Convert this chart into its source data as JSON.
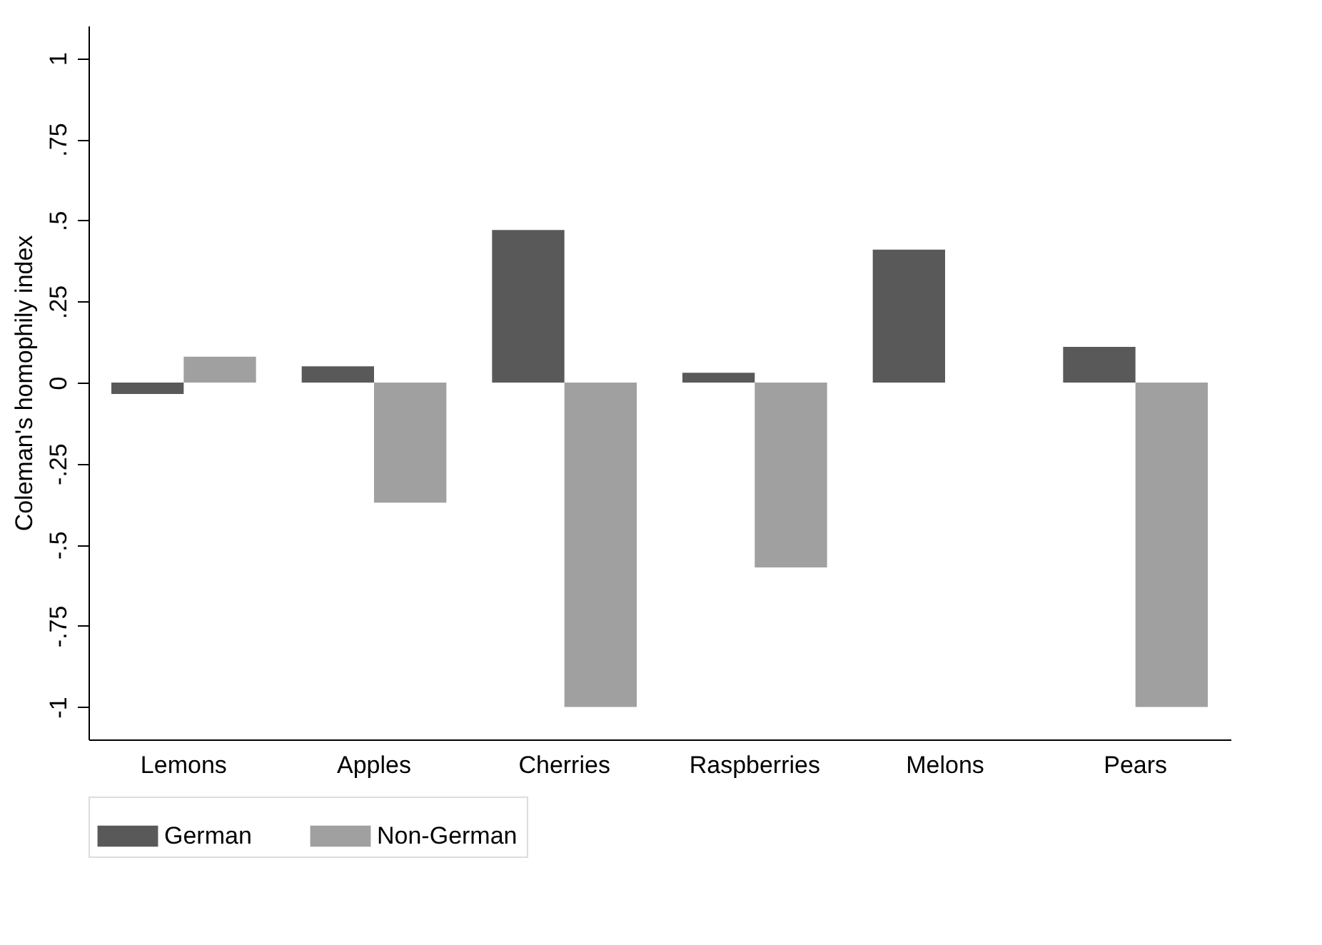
{
  "chart_data": {
    "type": "bar",
    "ylabel": "Coleman's homophily index",
    "categories": [
      "Lemons",
      "Apples",
      "Cherries",
      "Raspberries",
      "Melons",
      "Pears"
    ],
    "series": [
      {
        "name": "German",
        "color": "#595959",
        "values": [
          -0.035,
          0.05,
          0.47,
          0.03,
          0.41,
          0.11
        ]
      },
      {
        "name": "Non-German",
        "color": "#a0a0a0",
        "values": [
          0.08,
          -0.37,
          -1,
          -0.57,
          null,
          -1
        ]
      }
    ],
    "ylim": [
      -1.1,
      1.1
    ],
    "yticks": [
      {
        "value": -1,
        "label": "-1"
      },
      {
        "value": -0.75,
        "label": "-.75"
      },
      {
        "value": -0.5,
        "label": "-.5"
      },
      {
        "value": -0.25,
        "label": "-.25"
      },
      0,
      {
        "value": 0.25,
        "label": ".25"
      },
      {
        "value": 0.5,
        "label": ".5"
      },
      {
        "value": 0.75,
        "label": ".75"
      },
      1
    ],
    "grid": false,
    "legend": "bottom"
  }
}
